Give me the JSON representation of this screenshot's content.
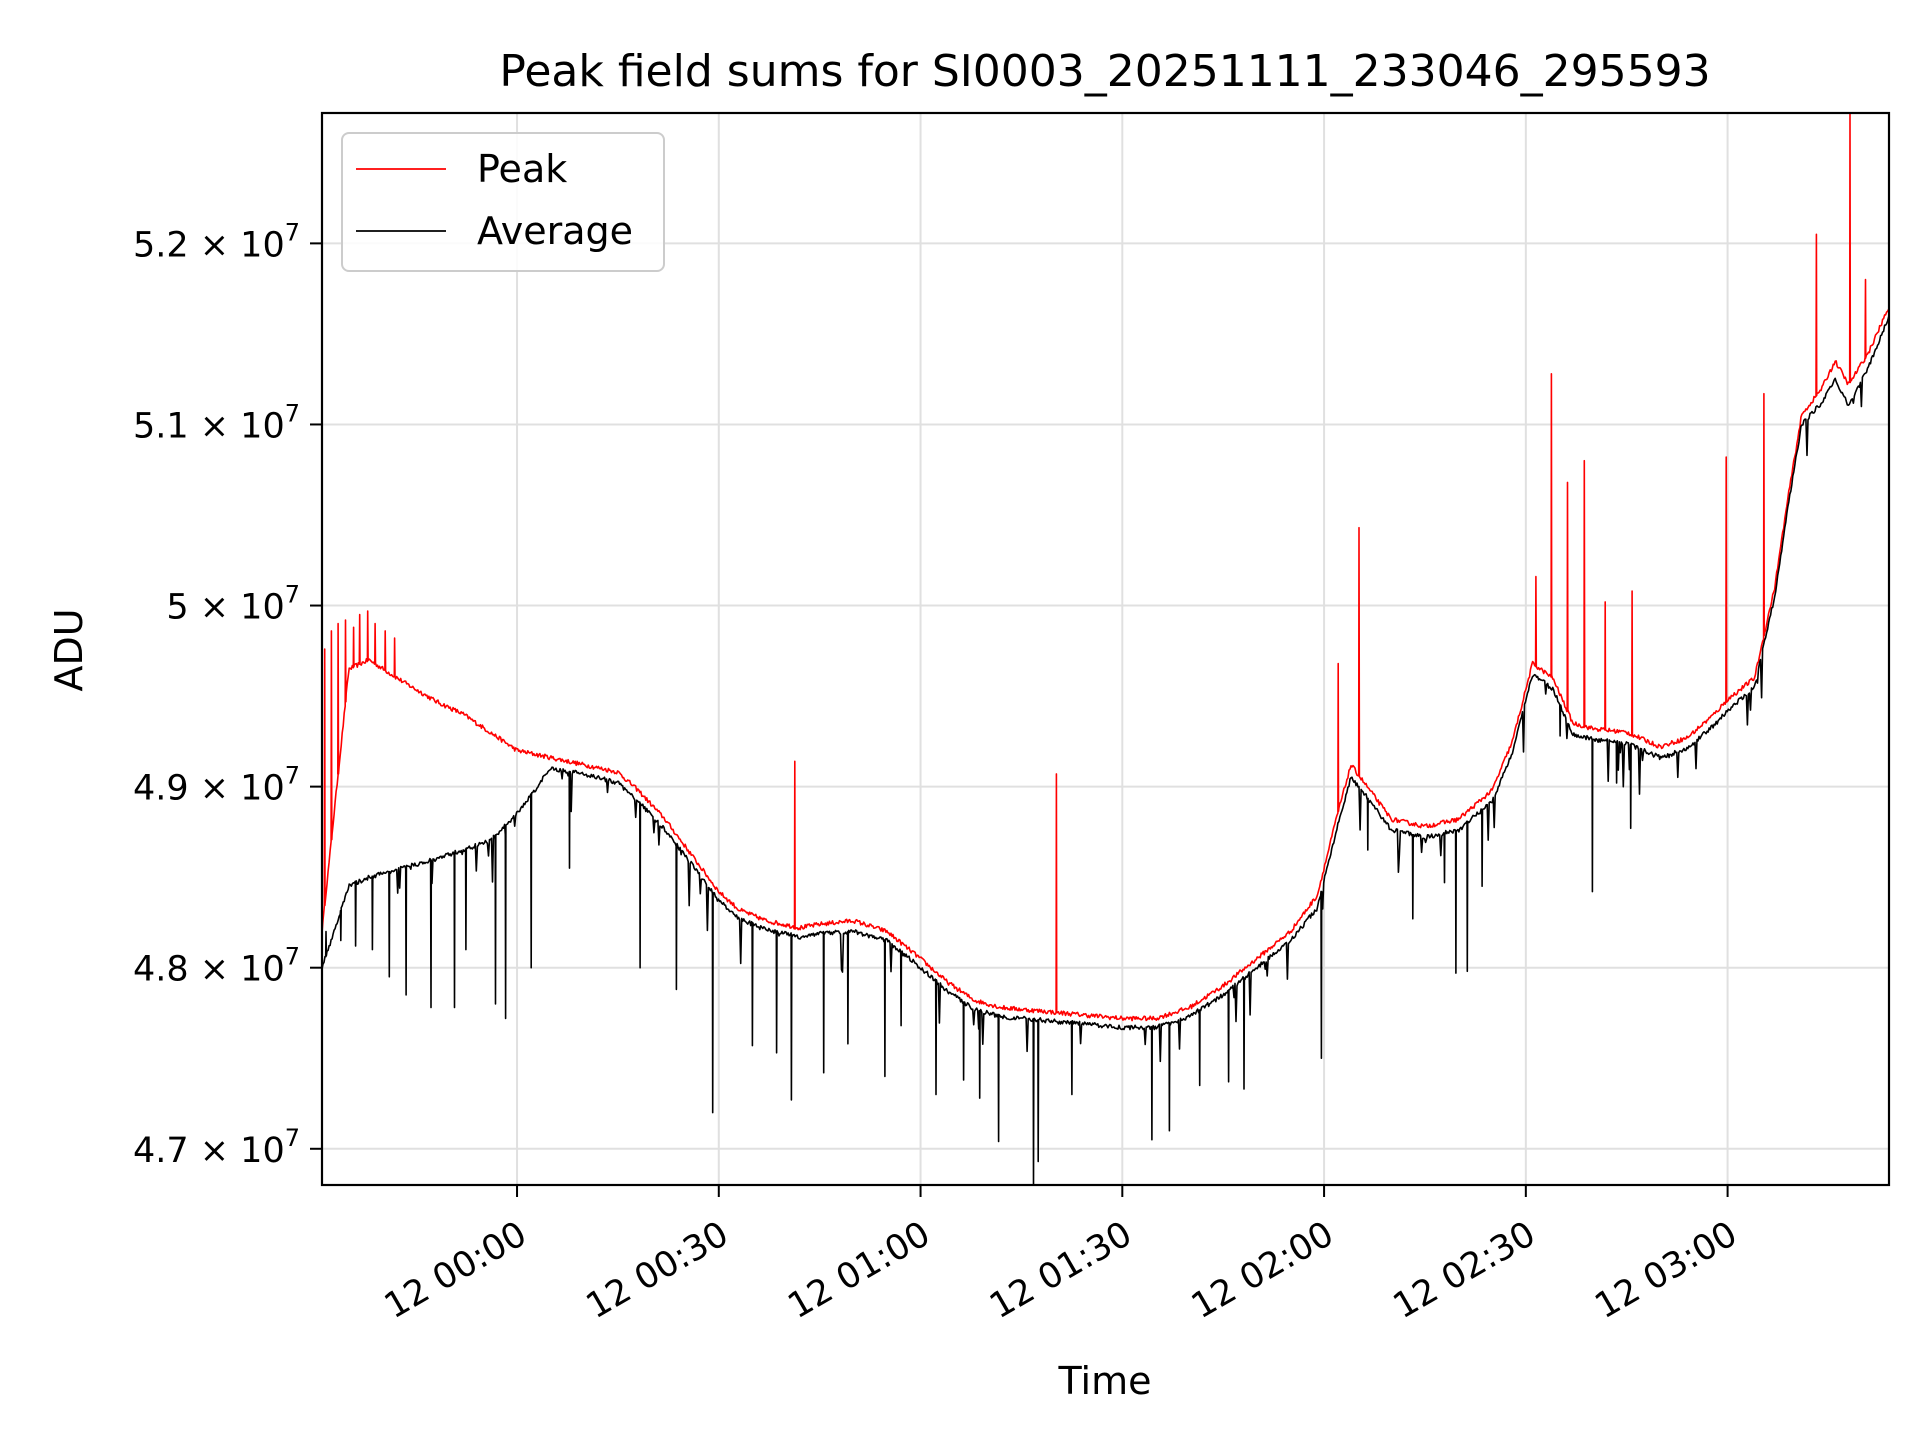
{
  "chart_data": {
    "type": "line",
    "title": "Peak field sums for SI0003_20251111_233046_295593",
    "xlabel": "Time",
    "ylabel": "ADU",
    "xlim": [
      -29,
      204
    ],
    "ylim": [
      46.8,
      52.72
    ],
    "y_units_note": "values in units of 10^6 ADU",
    "grid": true,
    "legend_position": "upper-left",
    "x_ticks": [
      {
        "value": 0,
        "label": "12 00:00"
      },
      {
        "value": 30,
        "label": "12 00:30"
      },
      {
        "value": 60,
        "label": "12 01:00"
      },
      {
        "value": 90,
        "label": "12 01:30"
      },
      {
        "value": 120,
        "label": "12 02:00"
      },
      {
        "value": 150,
        "label": "12 02:30"
      },
      {
        "value": 180,
        "label": "12 03:00"
      }
    ],
    "y_ticks": [
      {
        "value": 47,
        "mantissa": "4.7",
        "exponent": "7"
      },
      {
        "value": 48,
        "mantissa": "4.8",
        "exponent": "7"
      },
      {
        "value": 49,
        "mantissa": "4.9",
        "exponent": "7"
      },
      {
        "value": 50,
        "mantissa": "5",
        "exponent": "7"
      },
      {
        "value": 51,
        "mantissa": "5.1",
        "exponent": "7"
      },
      {
        "value": 52,
        "mantissa": "5.2",
        "exponent": "7"
      }
    ],
    "x_units_note": "x values are minutes relative to 12 00:00",
    "series": [
      {
        "name": "Peak",
        "color": "#ff0000",
        "baseline": [
          [
            -29,
            48.2
          ],
          [
            -25,
            49.65
          ],
          [
            -22,
            49.7
          ],
          [
            -17,
            49.58
          ],
          [
            -12,
            49.47
          ],
          [
            -8,
            49.4
          ],
          [
            -4,
            49.3
          ],
          [
            0,
            49.2
          ],
          [
            5,
            49.16
          ],
          [
            10,
            49.12
          ],
          [
            15,
            49.08
          ],
          [
            18,
            48.98
          ],
          [
            22,
            48.82
          ],
          [
            26,
            48.62
          ],
          [
            30,
            48.42
          ],
          [
            33,
            48.32
          ],
          [
            37,
            48.26
          ],
          [
            42,
            48.22
          ],
          [
            45,
            48.24
          ],
          [
            50,
            48.26
          ],
          [
            55,
            48.2
          ],
          [
            60,
            48.05
          ],
          [
            64,
            47.92
          ],
          [
            68,
            47.82
          ],
          [
            72,
            47.78
          ],
          [
            78,
            47.76
          ],
          [
            84,
            47.74
          ],
          [
            90,
            47.72
          ],
          [
            95,
            47.72
          ],
          [
            100,
            47.78
          ],
          [
            105,
            47.9
          ],
          [
            110,
            48.05
          ],
          [
            115,
            48.2
          ],
          [
            119,
            48.4
          ],
          [
            122,
            48.85
          ],
          [
            124,
            49.12
          ],
          [
            126,
            49.02
          ],
          [
            130,
            48.82
          ],
          [
            135,
            48.78
          ],
          [
            140,
            48.82
          ],
          [
            145,
            48.98
          ],
          [
            148,
            49.25
          ],
          [
            151,
            49.68
          ],
          [
            154,
            49.6
          ],
          [
            157,
            49.35
          ],
          [
            160,
            49.32
          ],
          [
            165,
            49.3
          ],
          [
            170,
            49.22
          ],
          [
            174,
            49.27
          ],
          [
            178,
            49.4
          ],
          [
            180,
            49.48
          ],
          [
            184,
            49.6
          ],
          [
            187,
            50.1
          ],
          [
            189,
            50.6
          ],
          [
            191,
            51.05
          ],
          [
            194,
            51.2
          ],
          [
            196,
            51.35
          ],
          [
            198,
            51.22
          ],
          [
            201,
            51.4
          ],
          [
            204,
            51.65
          ]
        ],
        "spikes": [
          [
            -28.6,
            49.76
          ],
          [
            -27.6,
            49.86
          ],
          [
            -26.6,
            49.9
          ],
          [
            -25.5,
            49.92
          ],
          [
            -24.3,
            49.88
          ],
          [
            -23.4,
            49.95
          ],
          [
            -22.2,
            49.97
          ],
          [
            -21.1,
            49.9
          ],
          [
            -19.6,
            49.86
          ],
          [
            -18.2,
            49.82
          ],
          [
            41.3,
            49.14
          ],
          [
            80.2,
            49.07
          ],
          [
            122.1,
            49.68
          ],
          [
            125.2,
            50.43
          ],
          [
            151.5,
            50.16
          ],
          [
            153.8,
            51.28
          ],
          [
            156.2,
            50.68
          ],
          [
            158.7,
            50.8
          ],
          [
            161.8,
            50.02
          ],
          [
            165.8,
            50.08
          ],
          [
            179.8,
            50.82
          ],
          [
            185.4,
            51.17
          ],
          [
            193.2,
            52.05
          ],
          [
            198.2,
            52.72
          ],
          [
            200.5,
            51.8
          ]
        ]
      },
      {
        "name": "Average",
        "color": "#000000",
        "baseline": [
          [
            -29,
            48.0
          ],
          [
            -25,
            48.45
          ],
          [
            -22,
            48.5
          ],
          [
            -17,
            48.55
          ],
          [
            -12,
            48.6
          ],
          [
            -8,
            48.65
          ],
          [
            -4,
            48.7
          ],
          [
            0,
            48.85
          ],
          [
            5,
            49.1
          ],
          [
            10,
            49.07
          ],
          [
            15,
            49.02
          ],
          [
            18,
            48.92
          ],
          [
            22,
            48.76
          ],
          [
            26,
            48.57
          ],
          [
            30,
            48.37
          ],
          [
            33,
            48.27
          ],
          [
            37,
            48.21
          ],
          [
            42,
            48.17
          ],
          [
            45,
            48.19
          ],
          [
            50,
            48.2
          ],
          [
            55,
            48.15
          ],
          [
            60,
            48.0
          ],
          [
            64,
            47.87
          ],
          [
            68,
            47.77
          ],
          [
            72,
            47.73
          ],
          [
            78,
            47.71
          ],
          [
            84,
            47.69
          ],
          [
            90,
            47.67
          ],
          [
            95,
            47.67
          ],
          [
            100,
            47.73
          ],
          [
            105,
            47.85
          ],
          [
            110,
            48.0
          ],
          [
            115,
            48.15
          ],
          [
            119,
            48.33
          ],
          [
            122,
            48.78
          ],
          [
            124,
            49.05
          ],
          [
            126,
            48.96
          ],
          [
            130,
            48.76
          ],
          [
            135,
            48.72
          ],
          [
            140,
            48.76
          ],
          [
            145,
            48.92
          ],
          [
            148,
            49.19
          ],
          [
            151,
            49.62
          ],
          [
            154,
            49.54
          ],
          [
            157,
            49.29
          ],
          [
            160,
            49.26
          ],
          [
            165,
            49.24
          ],
          [
            170,
            49.16
          ],
          [
            174,
            49.21
          ],
          [
            178,
            49.34
          ],
          [
            180,
            49.42
          ],
          [
            184,
            49.55
          ],
          [
            187,
            50.05
          ],
          [
            189,
            50.55
          ],
          [
            191,
            51.0
          ],
          [
            194,
            51.12
          ],
          [
            196,
            51.25
          ],
          [
            198,
            51.1
          ],
          [
            201,
            51.32
          ],
          [
            204,
            51.6
          ]
        ],
        "dips": [
          [
            -28.4,
            48.2
          ],
          [
            -26.2,
            48.15
          ],
          [
            -24.0,
            48.12
          ],
          [
            -21.5,
            48.1
          ],
          [
            -19.0,
            47.95
          ],
          [
            -16.5,
            47.85
          ],
          [
            -12.8,
            47.78
          ],
          [
            -9.3,
            47.78
          ],
          [
            -7.6,
            48.1
          ],
          [
            -3.2,
            47.8
          ],
          [
            -1.7,
            47.72
          ],
          [
            2.1,
            48.0
          ],
          [
            7.8,
            48.55
          ],
          [
            18.3,
            48.0
          ],
          [
            23.7,
            47.88
          ],
          [
            29.1,
            47.2
          ],
          [
            35.0,
            47.57
          ],
          [
            38.6,
            47.53
          ],
          [
            40.8,
            47.27
          ],
          [
            45.6,
            47.42
          ],
          [
            49.2,
            47.58
          ],
          [
            54.7,
            47.4
          ],
          [
            57.1,
            47.68
          ],
          [
            62.3,
            47.3
          ],
          [
            66.4,
            47.38
          ],
          [
            68.8,
            47.28
          ],
          [
            71.6,
            47.04
          ],
          [
            76.8,
            46.8
          ],
          [
            77.5,
            46.93
          ],
          [
            82.5,
            47.3
          ],
          [
            94.4,
            47.05
          ],
          [
            97.0,
            47.1
          ],
          [
            101.5,
            47.35
          ],
          [
            105.8,
            47.37
          ],
          [
            108.1,
            47.33
          ],
          [
            119.6,
            47.5
          ],
          [
            126.5,
            48.65
          ],
          [
            133.2,
            48.27
          ],
          [
            137.9,
            48.47
          ],
          [
            139.6,
            47.97
          ],
          [
            141.3,
            47.98
          ],
          [
            143.5,
            48.45
          ],
          [
            155.1,
            49.28
          ],
          [
            159.9,
            48.42
          ],
          [
            163.5,
            49.02
          ],
          [
            165.6,
            48.77
          ],
          [
            171.3,
            49.16
          ]
        ]
      }
    ]
  }
}
